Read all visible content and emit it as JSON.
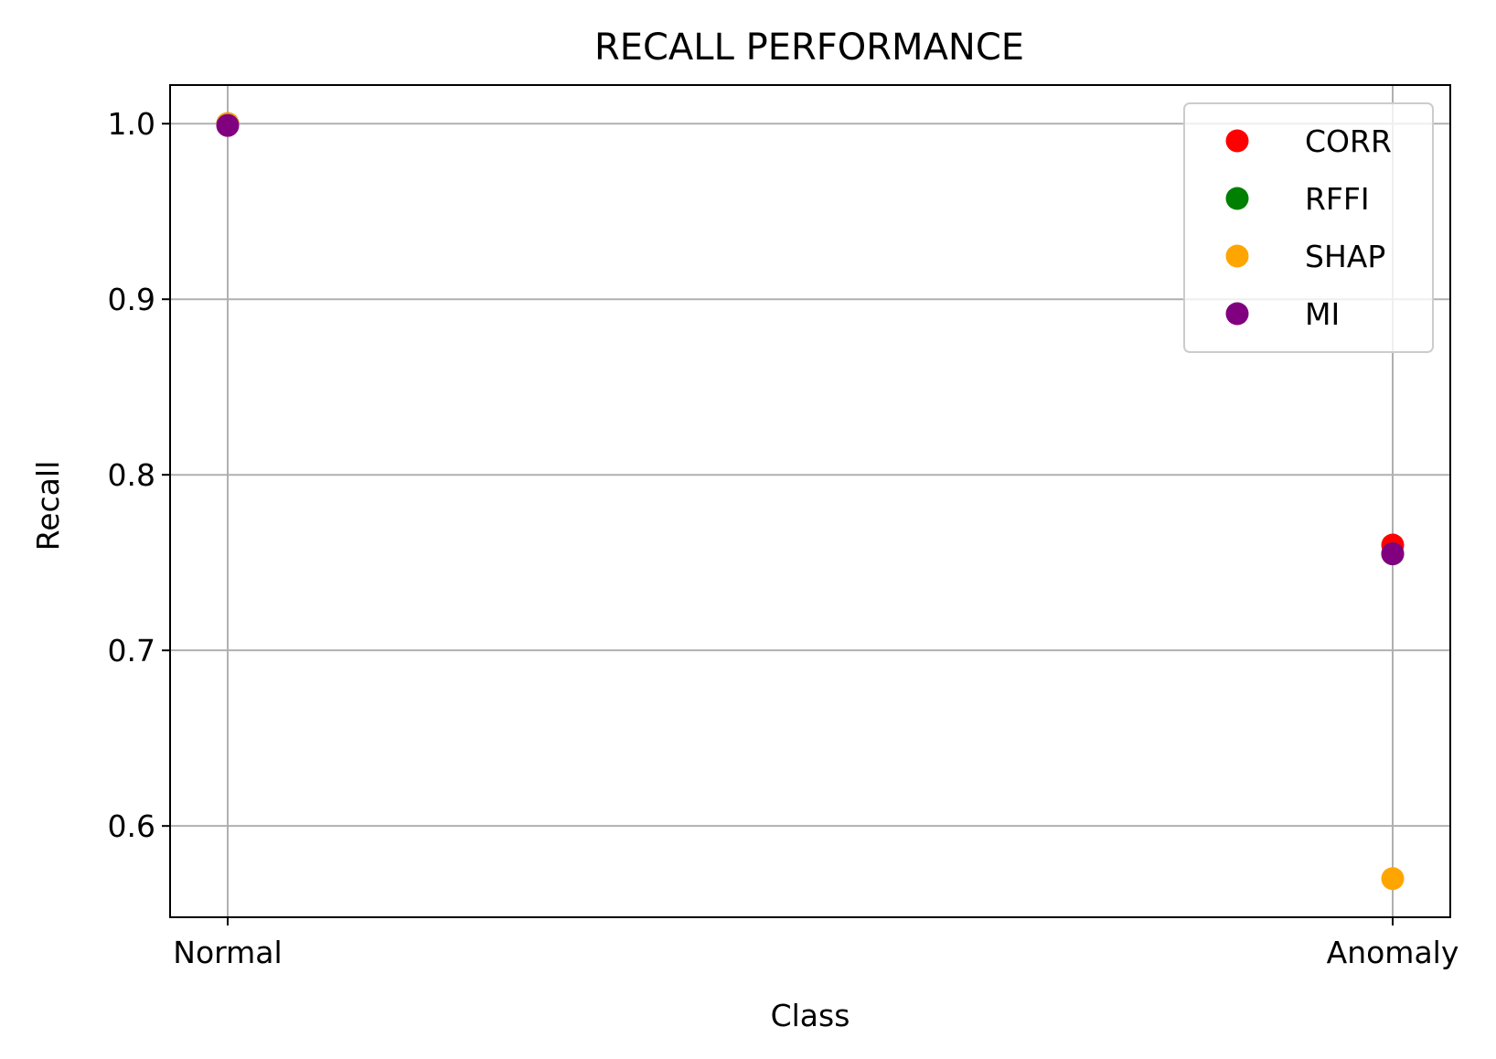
{
  "chart_data": {
    "type": "scatter",
    "title": "RECALL PERFORMANCE",
    "xlabel": "Class",
    "ylabel": "Recall",
    "categories": [
      "Normal",
      "Anomaly"
    ],
    "ylim": [
      0.548,
      1.022
    ],
    "yticks": [
      "0.6",
      "0.7",
      "0.8",
      "0.9",
      "1.0"
    ],
    "grid": true,
    "legend_position": "top-right",
    "series": [
      {
        "name": "CORR",
        "color": "#ff0000",
        "values": [
          1.0,
          0.76
        ]
      },
      {
        "name": "RFFI",
        "color": "#008000",
        "values": [
          1.0,
          0.755
        ]
      },
      {
        "name": "SHAP",
        "color": "#ffa500",
        "values": [
          1.0,
          0.57
        ]
      },
      {
        "name": "MI",
        "color": "#800080",
        "values": [
          0.999,
          0.755
        ]
      }
    ]
  }
}
